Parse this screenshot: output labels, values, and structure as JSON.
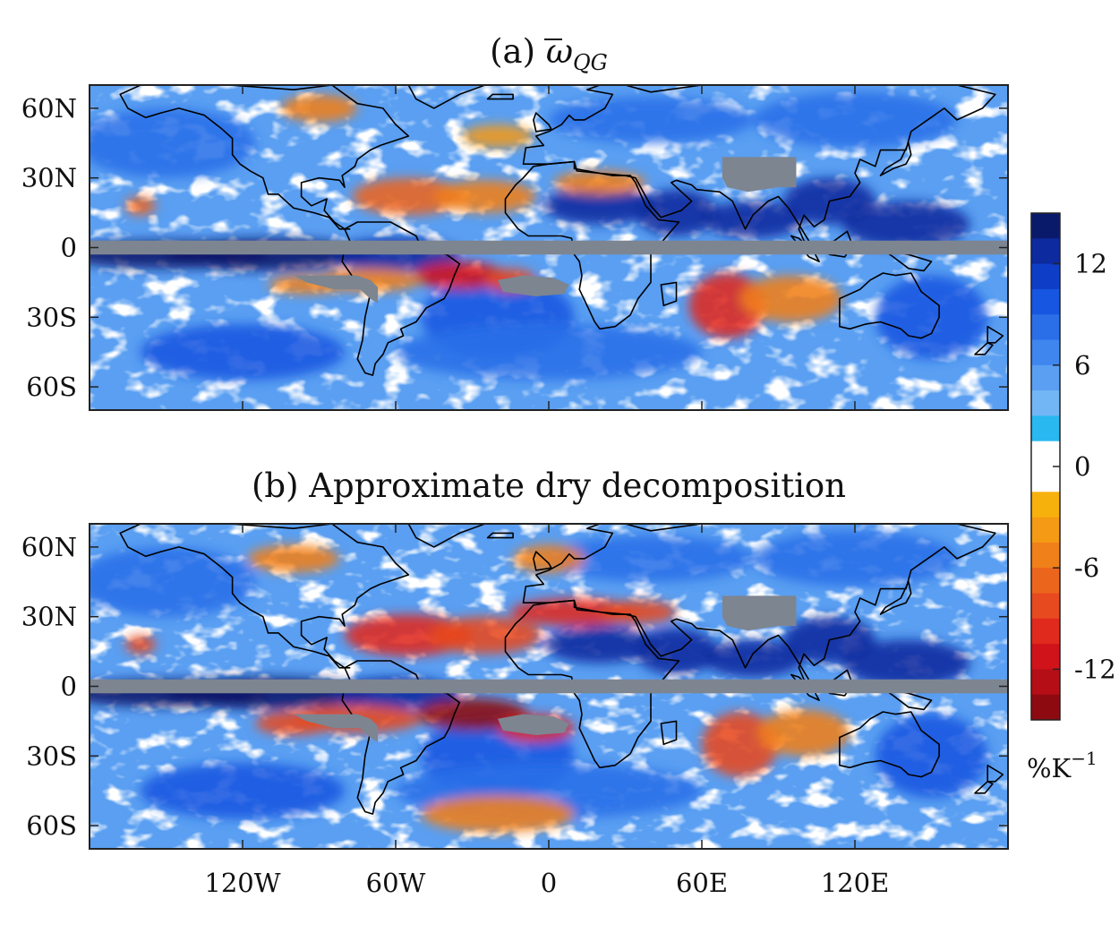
{
  "panels": [
    {
      "id": "a",
      "title_prefix": "(a) ",
      "title_symbol": "ω",
      "title_subscript": "QG",
      "title_full": "(a) ω̄_QG"
    },
    {
      "id": "b",
      "title_prefix": "(b) Approximate dry decomposition",
      "title_symbol": "",
      "title_subscript": "",
      "title_full": "(b) Approximate dry decomposition"
    }
  ],
  "lat_ticks": [
    "60N",
    "30N",
    "0",
    "30S",
    "60S"
  ],
  "lon_ticks": [
    "120W",
    "60W",
    "0",
    "60E",
    "120E"
  ],
  "lat_values": [
    60,
    30,
    0,
    -30,
    -60
  ],
  "lon_values": [
    -120,
    -60,
    0,
    60,
    120
  ],
  "map_extent": {
    "lon": [
      -180,
      180
    ],
    "lat": [
      -70,
      70
    ]
  },
  "masked_regions": [
    "equatorial band",
    "Tibetan Plateau",
    "Andes / Bolivian Altiplano",
    "southern Africa"
  ],
  "colorbar": {
    "ticks": [
      "12",
      "6",
      "0",
      "-6",
      "-12"
    ],
    "tick_values": [
      12,
      6,
      0,
      -6,
      -12
    ],
    "range": [
      -15,
      15
    ],
    "unit": "%K",
    "unit_exponent": "−1",
    "levels": [
      {
        "from": 13.5,
        "to": 15,
        "color": "#0a1a6b"
      },
      {
        "from": 12,
        "to": 13.5,
        "color": "#0d2a9e"
      },
      {
        "from": 10.5,
        "to": 12,
        "color": "#0e3ec8"
      },
      {
        "from": 9,
        "to": 10.5,
        "color": "#1656e0"
      },
      {
        "from": 7.5,
        "to": 9,
        "color": "#2a6fe8"
      },
      {
        "from": 6,
        "to": 7.5,
        "color": "#3f86ee"
      },
      {
        "from": 4.5,
        "to": 6,
        "color": "#5a9ff2"
      },
      {
        "from": 3,
        "to": 4.5,
        "color": "#73b6f5"
      },
      {
        "from": 1.5,
        "to": 3,
        "color": "#29b8f0"
      },
      {
        "from": -1.5,
        "to": 1.5,
        "color": "#ffffff"
      },
      {
        "from": -3,
        "to": -1.5,
        "color": "#f7b10d"
      },
      {
        "from": -4.5,
        "to": -3,
        "color": "#f49a14"
      },
      {
        "from": -6,
        "to": -4.5,
        "color": "#f0801a"
      },
      {
        "from": -7.5,
        "to": -6,
        "color": "#ec651d"
      },
      {
        "from": -9,
        "to": -7.5,
        "color": "#e74a1f"
      },
      {
        "from": -10.5,
        "to": -9,
        "color": "#e02a1d"
      },
      {
        "from": -12,
        "to": -10.5,
        "color": "#d0131a"
      },
      {
        "from": -13.5,
        "to": -12,
        "color": "#b50e16"
      },
      {
        "from": -15,
        "to": -13.5,
        "color": "#8d0a10"
      }
    ]
  },
  "colors": {
    "mask": "#7d8591",
    "coast": "#000000",
    "frame": "#222222",
    "ocean_base": "#5a9ff2"
  }
}
